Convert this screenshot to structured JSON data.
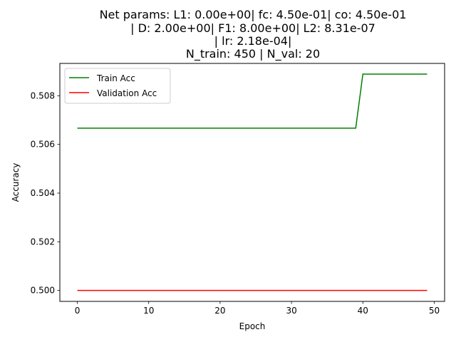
{
  "chart_data": {
    "type": "line",
    "title_lines": [
      "Net params: L1: 0.00e+00| fc: 4.50e-01| co: 4.50e-01",
      "| D: 2.00e+00| F1: 8.00e+00| L2: 8.31e-07",
      "| lr: 2.18e-04|",
      "N_train: 450 | N_val: 20"
    ],
    "xlabel": "Epoch",
    "ylabel": "Accuracy",
    "xlim": [
      -2.45,
      51.45
    ],
    "ylim": [
      0.49955,
      0.50933
    ],
    "xticks": [
      0,
      10,
      20,
      30,
      40,
      50
    ],
    "xtick_labels": [
      "0",
      "10",
      "20",
      "30",
      "40",
      "50"
    ],
    "yticks": [
      0.5,
      0.502,
      0.504,
      0.506,
      0.508
    ],
    "ytick_labels": [
      "0.500",
      "0.502",
      "0.504",
      "0.506",
      "0.508"
    ],
    "grid": false,
    "legend_position": "upper-left",
    "series": [
      {
        "name": "Train Acc",
        "color": "#008000",
        "x": [
          0,
          1,
          2,
          3,
          4,
          5,
          6,
          7,
          8,
          9,
          10,
          11,
          12,
          13,
          14,
          15,
          16,
          17,
          18,
          19,
          20,
          21,
          22,
          23,
          24,
          25,
          26,
          27,
          28,
          29,
          30,
          31,
          32,
          33,
          34,
          35,
          36,
          37,
          38,
          39,
          40,
          41,
          42,
          43,
          44,
          45,
          46,
          47,
          48,
          49
        ],
        "y": [
          0.50667,
          0.50667,
          0.50667,
          0.50667,
          0.50667,
          0.50667,
          0.50667,
          0.50667,
          0.50667,
          0.50667,
          0.50667,
          0.50667,
          0.50667,
          0.50667,
          0.50667,
          0.50667,
          0.50667,
          0.50667,
          0.50667,
          0.50667,
          0.50667,
          0.50667,
          0.50667,
          0.50667,
          0.50667,
          0.50667,
          0.50667,
          0.50667,
          0.50667,
          0.50667,
          0.50667,
          0.50667,
          0.50667,
          0.50667,
          0.50667,
          0.50667,
          0.50667,
          0.50667,
          0.50667,
          0.50667,
          0.50889,
          0.50889,
          0.50889,
          0.50889,
          0.50889,
          0.50889,
          0.50889,
          0.50889,
          0.50889,
          0.50889
        ]
      },
      {
        "name": "Validation Acc",
        "color": "#ff0000",
        "x": [
          0,
          1,
          2,
          3,
          4,
          5,
          6,
          7,
          8,
          9,
          10,
          11,
          12,
          13,
          14,
          15,
          16,
          17,
          18,
          19,
          20,
          21,
          22,
          23,
          24,
          25,
          26,
          27,
          28,
          29,
          30,
          31,
          32,
          33,
          34,
          35,
          36,
          37,
          38,
          39,
          40,
          41,
          42,
          43,
          44,
          45,
          46,
          47,
          48,
          49
        ],
        "y": [
          0.5,
          0.5,
          0.5,
          0.5,
          0.5,
          0.5,
          0.5,
          0.5,
          0.5,
          0.5,
          0.5,
          0.5,
          0.5,
          0.5,
          0.5,
          0.5,
          0.5,
          0.5,
          0.5,
          0.5,
          0.5,
          0.5,
          0.5,
          0.5,
          0.5,
          0.5,
          0.5,
          0.5,
          0.5,
          0.5,
          0.5,
          0.5,
          0.5,
          0.5,
          0.5,
          0.5,
          0.5,
          0.5,
          0.5,
          0.5,
          0.5,
          0.5,
          0.5,
          0.5,
          0.5,
          0.5,
          0.5,
          0.5,
          0.5,
          0.5
        ]
      }
    ]
  }
}
